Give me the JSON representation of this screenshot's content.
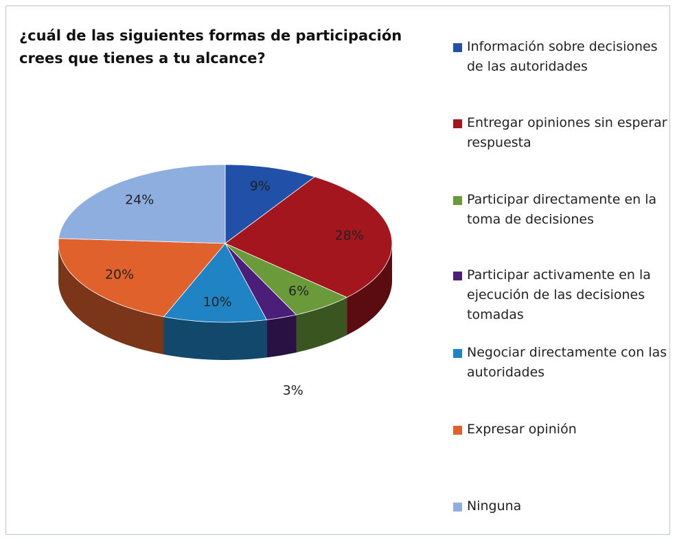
{
  "chart_data": {
    "type": "pie",
    "title": "¿cuál de las siguientes formas de participación crees que tienes a tu alcance?",
    "categories": [
      "Información sobre decisiones de las autoridades",
      "Entregar opiniones sin esperar respuesta",
      "Participar directamente en la toma de decisiones",
      "Participar activamente en la ejecución de las decisiones tomadas",
      "Negociar directamente con las autoridades",
      "Expresar opinión",
      "Ninguna"
    ],
    "values": [
      9,
      28,
      6,
      3,
      10,
      20,
      24
    ],
    "value_labels": [
      "9%",
      "28%",
      "6%",
      "3%",
      "10%",
      "20%",
      "24%"
    ],
    "colors": [
      "#2150a8",
      "#a3161d",
      "#6a9a3a",
      "#4b1e7a",
      "#1f83c4",
      "#e0612b",
      "#8faee0"
    ],
    "legend": "right"
  }
}
